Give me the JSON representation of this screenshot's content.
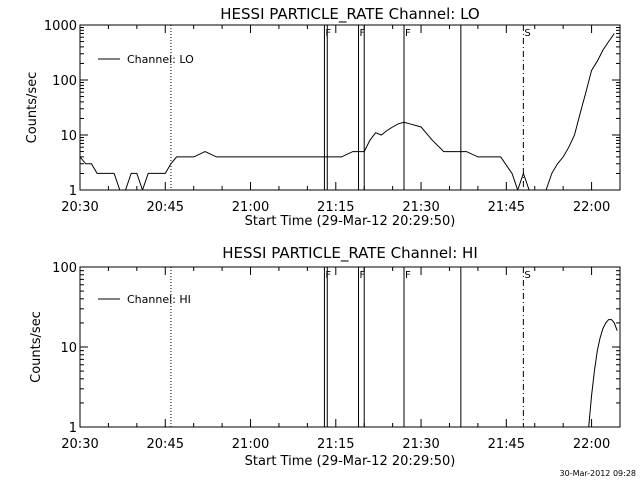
{
  "timestamp": "30-Mar-2012 09:28",
  "chart_data": [
    {
      "type": "line",
      "title": "HESSI PARTICLE_RATE Channel: LO",
      "xlabel": "Start Time (29-Mar-12 20:29:50)",
      "ylabel": "Counts/sec",
      "yscale": "log",
      "xlim": [
        "20:30",
        "22:05"
      ],
      "ylim": [
        1,
        1000
      ],
      "x_tick_labels": [
        "20:30",
        "20:45",
        "21:00",
        "21:15",
        "21:30",
        "21:45",
        "22:00"
      ],
      "y_tick_labels": [
        "1",
        "10",
        "100",
        "1000"
      ],
      "legend": {
        "placement": "top-left",
        "entries": [
          "Channel: LO"
        ]
      },
      "series": [
        {
          "name": "Channel: LO",
          "x": [
            "20:30",
            "20:31",
            "20:32",
            "20:33",
            "20:34",
            "20:35",
            "20:36",
            "20:37",
            "20:38",
            "20:39",
            "20:40",
            "20:41",
            "20:42",
            "20:43",
            "20:44",
            "20:45",
            "20:46",
            "20:47",
            "20:48",
            "20:50",
            "20:52",
            "20:54",
            "20:56",
            "20:58",
            "21:00",
            "21:02",
            "21:04",
            "21:06",
            "21:08",
            "21:10",
            "21:12",
            "21:14",
            "21:16",
            "21:18",
            "21:19",
            "21:20",
            "21:21",
            "21:22",
            "21:23",
            "21:24",
            "21:25",
            "21:26",
            "21:27",
            "21:28",
            "21:30",
            "21:32",
            "21:34",
            "21:36",
            "21:38",
            "21:40",
            "21:42",
            "21:44",
            "21:46",
            "21:47",
            "21:48",
            "21:49",
            "21:50",
            "21:51",
            "21:52",
            "21:53",
            "21:54",
            "21:55",
            "21:56",
            "21:57",
            "21:58",
            "21:59",
            "22:00",
            "22:01",
            "22:02",
            "22:03",
            "22:04"
          ],
          "y": [
            4,
            3,
            3,
            2,
            2,
            2,
            2,
            1,
            1,
            2,
            2,
            1,
            2,
            2,
            2,
            2,
            3,
            4,
            4,
            4,
            5,
            4,
            4,
            4,
            4,
            4,
            4,
            4,
            4,
            4,
            4,
            4,
            4,
            5,
            5,
            5,
            8,
            11,
            10,
            12,
            14,
            16,
            17,
            16,
            14,
            8,
            5,
            5,
            5,
            4,
            4,
            4,
            2,
            1,
            2,
            1,
            1,
            1,
            1,
            2,
            3,
            4,
            6,
            10,
            25,
            60,
            150,
            220,
            350,
            500,
            700
          ]
        }
      ],
      "annotations": [
        {
          "type": "vline",
          "style": "dotted",
          "x": "20:46"
        },
        {
          "type": "vline",
          "style": "solid",
          "x": "21:13",
          "label": "F"
        },
        {
          "type": "vline",
          "style": "solid",
          "x": "21:13.5"
        },
        {
          "type": "vline",
          "style": "solid",
          "x": "21:19",
          "label": "F"
        },
        {
          "type": "vline",
          "style": "solid",
          "x": "21:20"
        },
        {
          "type": "vline",
          "style": "solid",
          "x": "21:27",
          "label": "F"
        },
        {
          "type": "vline",
          "style": "solid",
          "x": "21:37"
        },
        {
          "type": "vline",
          "style": "dashdot",
          "x": "21:48",
          "label": "S"
        },
        {
          "type": "vline",
          "style": "dashdot",
          "x": "22:05"
        }
      ]
    },
    {
      "type": "line",
      "title": "HESSI PARTICLE_RATE Channel: HI",
      "xlabel": "Start Time (29-Mar-12 20:29:50)",
      "ylabel": "Counts/sec",
      "yscale": "log",
      "xlim": [
        "20:30",
        "22:05"
      ],
      "ylim": [
        1,
        100
      ],
      "x_tick_labels": [
        "20:30",
        "20:45",
        "21:00",
        "21:15",
        "21:30",
        "21:45",
        "22:00"
      ],
      "y_tick_labels": [
        "1",
        "10",
        "100"
      ],
      "legend": {
        "placement": "top-left",
        "entries": [
          "Channel: HI"
        ]
      },
      "series": [
        {
          "name": "Channel: HI",
          "x": [
            "21:59.5",
            "22:00",
            "22:00.5",
            "22:01",
            "22:01.5",
            "22:02",
            "22:02.5",
            "22:03",
            "22:03.5",
            "22:04",
            "22:04.5"
          ],
          "y": [
            1,
            2.5,
            5,
            9,
            13,
            17,
            20,
            22,
            22,
            20,
            16
          ]
        }
      ],
      "annotations": [
        {
          "type": "vline",
          "style": "dotted",
          "x": "20:46"
        },
        {
          "type": "vline",
          "style": "solid",
          "x": "21:13",
          "label": "F"
        },
        {
          "type": "vline",
          "style": "solid",
          "x": "21:13.5"
        },
        {
          "type": "vline",
          "style": "solid",
          "x": "21:19",
          "label": "F"
        },
        {
          "type": "vline",
          "style": "solid",
          "x": "21:20"
        },
        {
          "type": "vline",
          "style": "solid",
          "x": "21:27",
          "label": "F"
        },
        {
          "type": "vline",
          "style": "solid",
          "x": "21:37"
        },
        {
          "type": "vline",
          "style": "dashdot",
          "x": "21:48",
          "label": "S"
        },
        {
          "type": "vline",
          "style": "dashdot",
          "x": "22:05"
        }
      ]
    }
  ]
}
